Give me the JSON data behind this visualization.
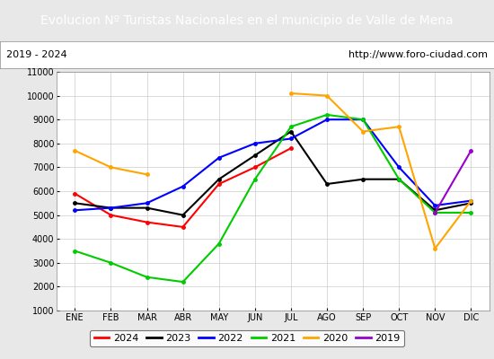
{
  "title": "Evolucion Nº Turistas Nacionales en el municipio de Valle de Mena",
  "subtitle_left": "2019 - 2024",
  "subtitle_right": "http://www.foro-ciudad.com",
  "x_labels": [
    "ENE",
    "FEB",
    "MAR",
    "ABR",
    "MAY",
    "JUN",
    "JUL",
    "AGO",
    "SEP",
    "OCT",
    "NOV",
    "DIC"
  ],
  "ylim": [
    1000,
    11000
  ],
  "yticks": [
    1000,
    2000,
    3000,
    4000,
    5000,
    6000,
    7000,
    8000,
    9000,
    10000,
    11000
  ],
  "series": {
    "2024": {
      "color": "#ff0000",
      "data": [
        5900,
        5000,
        4700,
        4500,
        6300,
        7000,
        7800,
        null,
        null,
        null,
        null,
        null
      ]
    },
    "2023": {
      "color": "#000000",
      "data": [
        5500,
        5300,
        5300,
        5000,
        6500,
        7500,
        8500,
        6300,
        6500,
        6500,
        5200,
        5500
      ]
    },
    "2022": {
      "color": "#0000ff",
      "data": [
        5200,
        5300,
        5500,
        6200,
        7400,
        8000,
        8200,
        9000,
        9000,
        7000,
        5400,
        5600
      ]
    },
    "2021": {
      "color": "#00cc00",
      "data": [
        3500,
        3000,
        2400,
        2200,
        3800,
        6500,
        8700,
        9200,
        9000,
        6500,
        5100,
        5100
      ]
    },
    "2020": {
      "color": "#ffa500",
      "data": [
        7700,
        7000,
        6700,
        null,
        null,
        null,
        10100,
        10000,
        8500,
        8700,
        3600,
        5600
      ]
    },
    "2019": {
      "color": "#9900cc",
      "data": [
        null,
        null,
        null,
        null,
        null,
        null,
        null,
        null,
        null,
        null,
        5100,
        7700
      ]
    }
  },
  "title_bg_color": "#4472c4",
  "title_font_color": "#ffffff",
  "title_fontsize": 10,
  "subtitle_fontsize": 8,
  "tick_fontsize": 7,
  "legend_fontsize": 8,
  "bg_color": "#e8e8e8",
  "plot_bg_color": "#ffffff",
  "subtitle_bg_color": "#ffffff",
  "grid_color": "#cccccc"
}
